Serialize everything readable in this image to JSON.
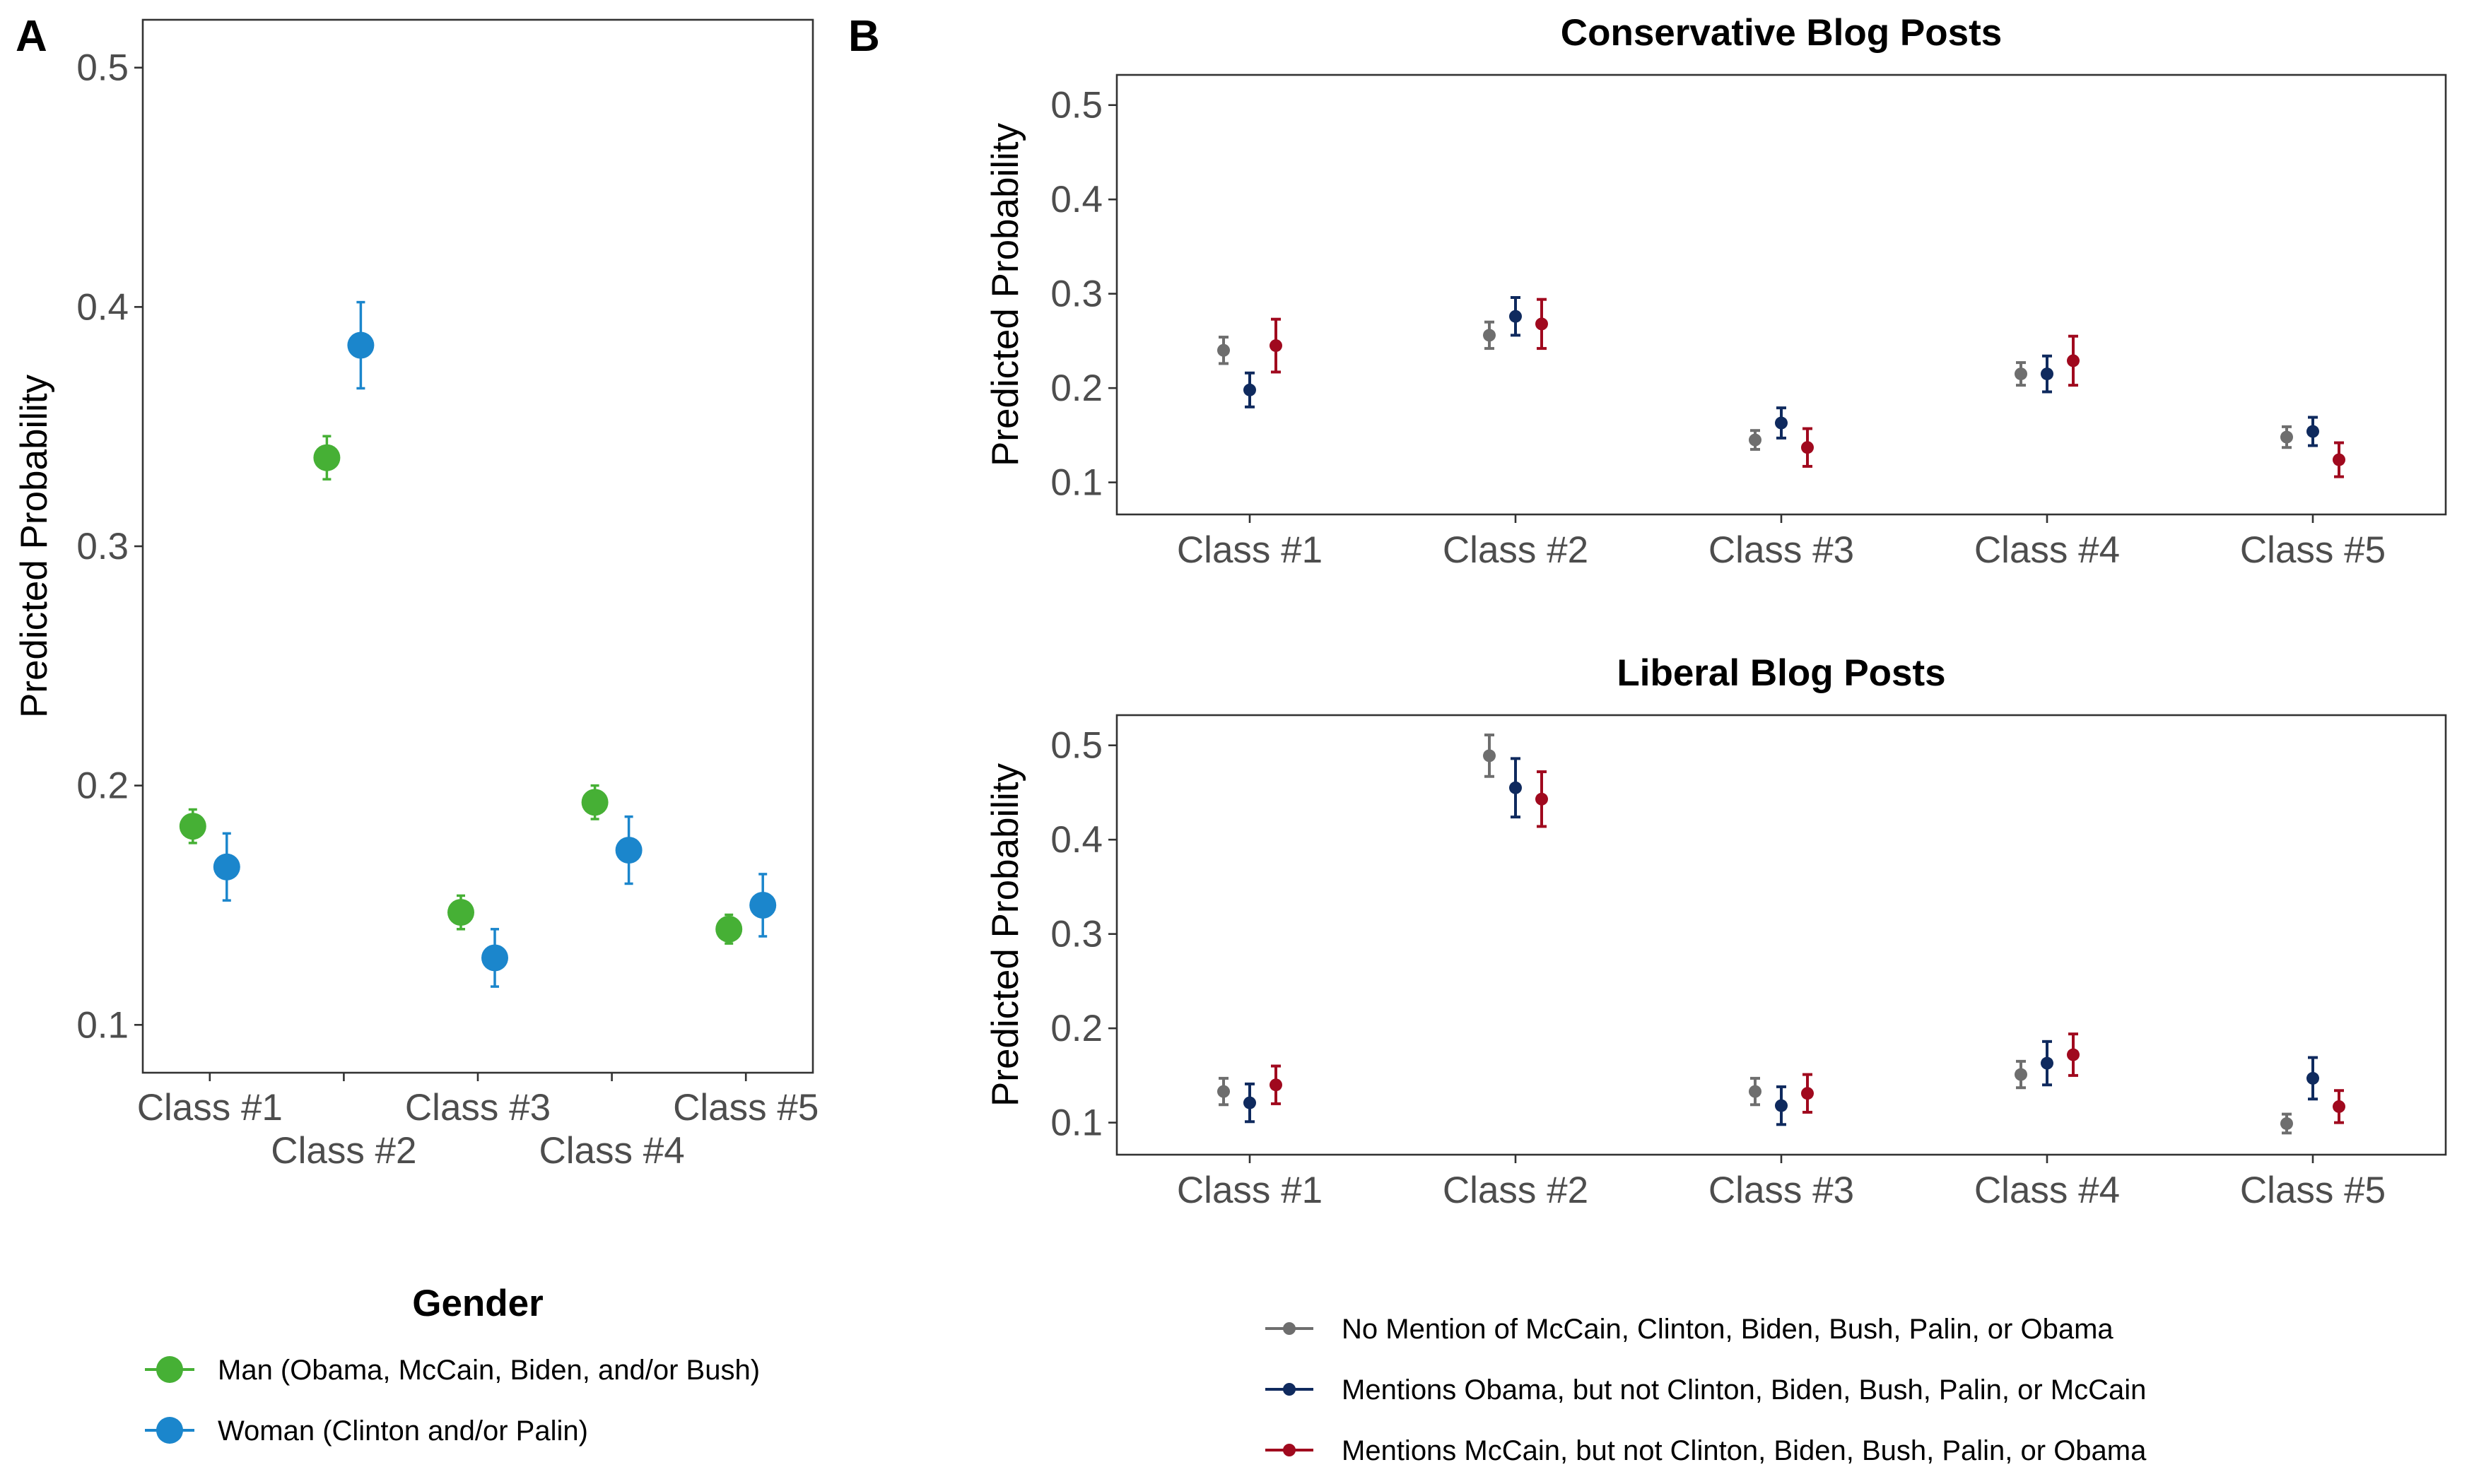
{
  "panel_labels": {
    "a": "A",
    "b": "B"
  },
  "chart_data": [
    {
      "id": "A",
      "type": "scatter",
      "subtype": "point-range",
      "title": "",
      "xlabel": "",
      "ylabel": "Predicted Probability",
      "ylim": [
        0.08,
        0.52
      ],
      "yticks": [
        0.1,
        0.2,
        0.3,
        0.4,
        0.5
      ],
      "categories": [
        "Class #1",
        "Class #2",
        "Class #3",
        "Class #4",
        "Class #5"
      ],
      "legend_title": "Gender",
      "legend_position": "bottom",
      "grid": false,
      "series": [
        {
          "name": "Man (Obama, McCain, Biden, and/or Bush)",
          "color": "#46b035",
          "values": [
            0.183,
            0.337,
            0.147,
            0.193,
            0.14
          ],
          "lower": [
            0.176,
            0.328,
            0.14,
            0.186,
            0.134
          ],
          "upper": [
            0.19,
            0.346,
            0.154,
            0.2,
            0.146
          ]
        },
        {
          "name": "Woman (Clinton and/or Palin)",
          "color": "#1b86cc",
          "values": [
            0.166,
            0.384,
            0.128,
            0.173,
            0.15
          ],
          "lower": [
            0.152,
            0.366,
            0.116,
            0.159,
            0.137
          ],
          "upper": [
            0.18,
            0.402,
            0.14,
            0.187,
            0.163
          ]
        }
      ]
    },
    {
      "id": "B-top",
      "type": "scatter",
      "subtype": "point-range",
      "title": "Conservative Blog Posts",
      "xlabel": "",
      "ylabel": "Predicted Probability",
      "ylim": [
        0.066,
        0.532
      ],
      "yticks": [
        0.1,
        0.2,
        0.3,
        0.4,
        0.5
      ],
      "categories": [
        "Class #1",
        "Class #2",
        "Class #3",
        "Class #4",
        "Class #5"
      ],
      "grid": false,
      "series": [
        {
          "name": "No Mention of McCain, Clinton, Biden, Bush, Palin, or Obama",
          "color": "#6e6e6e",
          "values": [
            0.24,
            0.256,
            0.145,
            0.215,
            0.148
          ],
          "lower": [
            0.226,
            0.242,
            0.135,
            0.203,
            0.137
          ],
          "upper": [
            0.254,
            0.27,
            0.155,
            0.227,
            0.159
          ]
        },
        {
          "name": "Mentions Obama, but not Clinton, Biden, Bush, Palin, or McCain",
          "color": "#0f2a5e",
          "values": [
            0.198,
            0.276,
            0.163,
            0.215,
            0.154
          ],
          "lower": [
            0.18,
            0.256,
            0.147,
            0.196,
            0.139
          ],
          "upper": [
            0.216,
            0.296,
            0.179,
            0.234,
            0.169
          ]
        },
        {
          "name": "Mentions McCain, but not Clinton, Biden, Bush, Palin, or Obama",
          "color": "#a0091e",
          "values": [
            0.245,
            0.268,
            0.137,
            0.229,
            0.124
          ],
          "lower": [
            0.217,
            0.242,
            0.117,
            0.203,
            0.106
          ],
          "upper": [
            0.273,
            0.294,
            0.157,
            0.255,
            0.142
          ]
        }
      ]
    },
    {
      "id": "B-bottom",
      "type": "scatter",
      "subtype": "point-range",
      "title": "Liberal Blog Posts",
      "xlabel": "",
      "ylabel": "Predicted Probability",
      "ylim": [
        0.066,
        0.532
      ],
      "yticks": [
        0.1,
        0.2,
        0.3,
        0.4,
        0.5
      ],
      "categories": [
        "Class #1",
        "Class #2",
        "Class #3",
        "Class #4",
        "Class #5"
      ],
      "legend_position": "bottom",
      "grid": false,
      "series": [
        {
          "name": "No Mention of McCain, Clinton, Biden, Bush, Palin, or Obama",
          "color": "#6e6e6e",
          "values": [
            0.133,
            0.489,
            0.133,
            0.151,
            0.099
          ],
          "lower": [
            0.119,
            0.467,
            0.119,
            0.137,
            0.089
          ],
          "upper": [
            0.147,
            0.511,
            0.147,
            0.165,
            0.109
          ]
        },
        {
          "name": "Mentions Obama, but not Clinton, Biden, Bush, Palin, or McCain",
          "color": "#0f2a5e",
          "values": [
            0.121,
            0.455,
            0.118,
            0.163,
            0.147
          ],
          "lower": [
            0.101,
            0.424,
            0.098,
            0.14,
            0.125
          ],
          "upper": [
            0.141,
            0.486,
            0.138,
            0.186,
            0.169
          ]
        },
        {
          "name": "Mentions McCain, but not Clinton, Biden, Bush, Palin, or Obama",
          "color": "#a0091e",
          "values": [
            0.14,
            0.443,
            0.131,
            0.172,
            0.117
          ],
          "lower": [
            0.12,
            0.414,
            0.111,
            0.15,
            0.1
          ],
          "upper": [
            0.16,
            0.472,
            0.151,
            0.194,
            0.134
          ]
        }
      ]
    }
  ]
}
